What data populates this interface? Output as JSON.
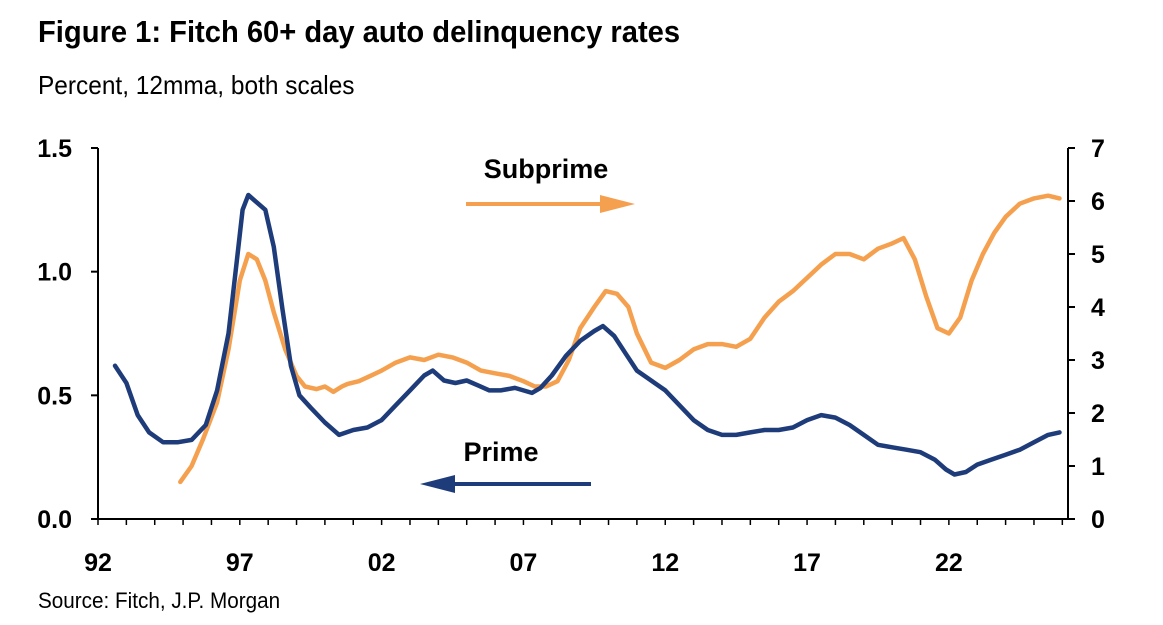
{
  "title": "Figure 1: Fitch 60+ day auto delinquency rates",
  "subtitle": "Percent, 12mma, both scales",
  "source": "Source: Fitch, J.P. Morgan",
  "colors": {
    "prime": "#1F3C7A",
    "subprime": "#F5A04E",
    "axis": "#000000"
  },
  "chart_data": {
    "type": "line",
    "title": "Figure 1: Fitch 60+ day auto delinquency rates",
    "x_tick_labels": [
      "92",
      "97",
      "02",
      "07",
      "12",
      "17",
      "22"
    ],
    "x_tick_years": [
      1992,
      1997,
      2002,
      2007,
      2012,
      2017,
      2022
    ],
    "xlim": [
      1992,
      2026.2
    ],
    "y_left": {
      "ylim": [
        0,
        1.5
      ],
      "ticks": [
        "0.0",
        "0.5",
        "1.0",
        "1.5"
      ],
      "tick_values": [
        0,
        0.5,
        1.0,
        1.5
      ]
    },
    "y_right": {
      "ylim": [
        0,
        7
      ],
      "ticks": [
        "0",
        "1",
        "2",
        "3",
        "4",
        "5",
        "6",
        "7"
      ],
      "tick_values": [
        0,
        1,
        2,
        3,
        4,
        5,
        6,
        7
      ]
    },
    "annotations": [
      {
        "text": "Subprime",
        "arrow": "right",
        "series": "Subprime"
      },
      {
        "text": "Prime",
        "arrow": "left",
        "series": "Prime"
      }
    ],
    "series": [
      {
        "name": "Prime",
        "axis": "left",
        "x": [
          1992.6,
          1993.0,
          1993.4,
          1993.8,
          1994.3,
          1994.8,
          1995.3,
          1995.8,
          1996.2,
          1996.6,
          1996.9,
          1997.1,
          1997.3,
          1997.6,
          1997.9,
          1998.2,
          1998.5,
          1998.8,
          1999.1,
          1999.5,
          2000.0,
          2000.5,
          2001.0,
          2001.5,
          2002.0,
          2002.5,
          2003.0,
          2003.5,
          2003.8,
          2004.2,
          2004.6,
          2005.0,
          2005.4,
          2005.8,
          2006.2,
          2006.7,
          2007.0,
          2007.3,
          2007.6,
          2008.0,
          2008.5,
          2009.0,
          2009.5,
          2009.8,
          2010.2,
          2010.6,
          2011.0,
          2011.5,
          2012.0,
          2012.5,
          2013.0,
          2013.5,
          2014.0,
          2014.5,
          2015.0,
          2015.5,
          2016.0,
          2016.5,
          2017.0,
          2017.5,
          2018.0,
          2018.5,
          2019.0,
          2019.5,
          2020.0,
          2020.5,
          2021.0,
          2021.5,
          2021.9,
          2022.2,
          2022.6,
          2023.0,
          2023.5,
          2024.0,
          2024.5,
          2025.0,
          2025.5,
          2025.9
        ],
        "values": [
          0.62,
          0.55,
          0.42,
          0.35,
          0.31,
          0.31,
          0.32,
          0.38,
          0.52,
          0.75,
          1.05,
          1.25,
          1.31,
          1.28,
          1.25,
          1.1,
          0.85,
          0.62,
          0.5,
          0.45,
          0.39,
          0.34,
          0.36,
          0.37,
          0.4,
          0.46,
          0.52,
          0.58,
          0.6,
          0.56,
          0.55,
          0.56,
          0.54,
          0.52,
          0.52,
          0.53,
          0.52,
          0.51,
          0.53,
          0.58,
          0.66,
          0.72,
          0.76,
          0.78,
          0.74,
          0.67,
          0.6,
          0.56,
          0.52,
          0.46,
          0.4,
          0.36,
          0.34,
          0.34,
          0.35,
          0.36,
          0.36,
          0.37,
          0.4,
          0.42,
          0.41,
          0.38,
          0.34,
          0.3,
          0.29,
          0.28,
          0.27,
          0.24,
          0.2,
          0.18,
          0.19,
          0.22,
          0.24,
          0.26,
          0.28,
          0.31,
          0.34,
          0.35
        ]
      },
      {
        "name": "Subprime",
        "axis": "right",
        "x": [
          1994.9,
          1995.3,
          1995.7,
          1996.2,
          1996.6,
          1997.0,
          1997.3,
          1997.6,
          1997.9,
          1998.2,
          1998.6,
          1999.0,
          1999.3,
          1999.7,
          2000.0,
          2000.3,
          2000.6,
          2000.8,
          2001.2,
          2001.6,
          2002.0,
          2002.5,
          2003.0,
          2003.5,
          2004.0,
          2004.5,
          2005.0,
          2005.5,
          2006.0,
          2006.5,
          2007.0,
          2007.4,
          2007.8,
          2008.2,
          2008.6,
          2009.0,
          2009.5,
          2009.9,
          2010.3,
          2010.7,
          2011.0,
          2011.5,
          2012.0,
          2012.5,
          2013.0,
          2013.5,
          2014.0,
          2014.5,
          2015.0,
          2015.5,
          2016.0,
          2016.5,
          2017.0,
          2017.5,
          2018.0,
          2018.5,
          2019.0,
          2019.5,
          2020.0,
          2020.4,
          2020.8,
          2021.2,
          2021.6,
          2022.0,
          2022.4,
          2022.8,
          2023.2,
          2023.6,
          2024.0,
          2024.5,
          2025.0,
          2025.5,
          2025.9
        ],
        "values": [
          0.7,
          1.0,
          1.5,
          2.2,
          3.2,
          4.5,
          5.0,
          4.9,
          4.5,
          3.9,
          3.2,
          2.7,
          2.5,
          2.45,
          2.5,
          2.4,
          2.5,
          2.55,
          2.6,
          2.7,
          2.8,
          2.95,
          3.05,
          3.0,
          3.1,
          3.05,
          2.95,
          2.8,
          2.75,
          2.7,
          2.6,
          2.5,
          2.5,
          2.6,
          3.0,
          3.6,
          4.0,
          4.3,
          4.25,
          4.0,
          3.5,
          2.95,
          2.85,
          3.0,
          3.2,
          3.3,
          3.3,
          3.25,
          3.4,
          3.8,
          4.1,
          4.3,
          4.55,
          4.8,
          5.0,
          5.0,
          4.9,
          5.1,
          5.2,
          5.3,
          4.9,
          4.2,
          3.6,
          3.5,
          3.8,
          4.5,
          5.0,
          5.4,
          5.7,
          5.95,
          6.05,
          6.1,
          6.05
        ]
      }
    ]
  }
}
